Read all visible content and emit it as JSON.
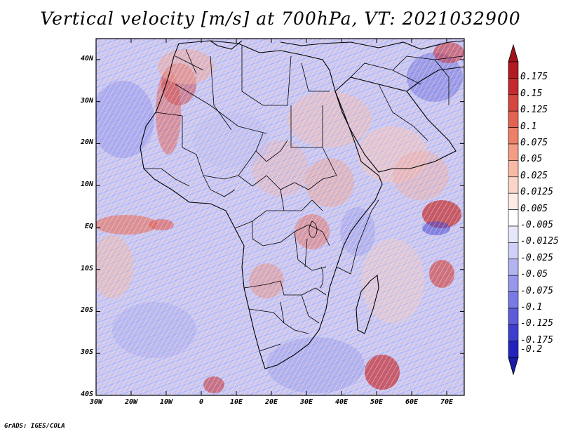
{
  "title": "Vertical velocity [m/s] at 700hPa, VT: 2021032900",
  "credit": "GrADS: IGES/COLA",
  "map": {
    "projection": "lat-lon",
    "lon_range": [
      -30,
      75
    ],
    "lat_range": [
      -40,
      45
    ],
    "lat_ticks": [
      {
        "value": 40,
        "label": "40N"
      },
      {
        "value": 30,
        "label": "30N"
      },
      {
        "value": 20,
        "label": "20N"
      },
      {
        "value": 10,
        "label": "10N"
      },
      {
        "value": 0,
        "label": "EQ"
      },
      {
        "value": -10,
        "label": "10S"
      },
      {
        "value": -20,
        "label": "20S"
      },
      {
        "value": -30,
        "label": "30S"
      },
      {
        "value": -40,
        "label": "40S"
      }
    ],
    "lon_ticks": [
      {
        "value": -30,
        "label": "30W"
      },
      {
        "value": -20,
        "label": "20W"
      },
      {
        "value": -10,
        "label": "10W"
      },
      {
        "value": 0,
        "label": "0"
      },
      {
        "value": 10,
        "label": "10E"
      },
      {
        "value": 20,
        "label": "20E"
      },
      {
        "value": 30,
        "label": "30E"
      },
      {
        "value": 40,
        "label": "40E"
      },
      {
        "value": 50,
        "label": "50E"
      },
      {
        "value": 60,
        "label": "60E"
      },
      {
        "value": 70,
        "label": "70E"
      }
    ]
  },
  "colorbar": {
    "levels": [
      {
        "label": "0.175",
        "color": "#b01a20"
      },
      {
        "label": "0.15",
        "color": "#c42a2e"
      },
      {
        "label": "0.125",
        "color": "#d5463f"
      },
      {
        "label": "0.1",
        "color": "#e26352"
      },
      {
        "label": "0.075",
        "color": "#ec8068"
      },
      {
        "label": "0.05",
        "color": "#f39d86"
      },
      {
        "label": "0.025",
        "color": "#f8baa6"
      },
      {
        "label": "0.0125",
        "color": "#fbd6c8"
      },
      {
        "label": "0.005",
        "color": "#fdece5"
      },
      {
        "label": "-0.005",
        "color": "#ffffff"
      },
      {
        "label": "-0.0125",
        "color": "#e7e7fb"
      },
      {
        "label": "-0.025",
        "color": "#cfcff7"
      },
      {
        "label": "-0.05",
        "color": "#b3b3f2"
      },
      {
        "label": "-0.075",
        "color": "#9797ec"
      },
      {
        "label": "-0.1",
        "color": "#7a7ae4"
      },
      {
        "label": "-0.125",
        "color": "#5d5ddb"
      },
      {
        "label": "-0.175",
        "color": "#3e3ecf"
      },
      {
        "label": "-0.2",
        "color": "#2323bd"
      }
    ],
    "top_arrow_color": "#a01419",
    "bottom_arrow_color": "#1a1aa8"
  }
}
